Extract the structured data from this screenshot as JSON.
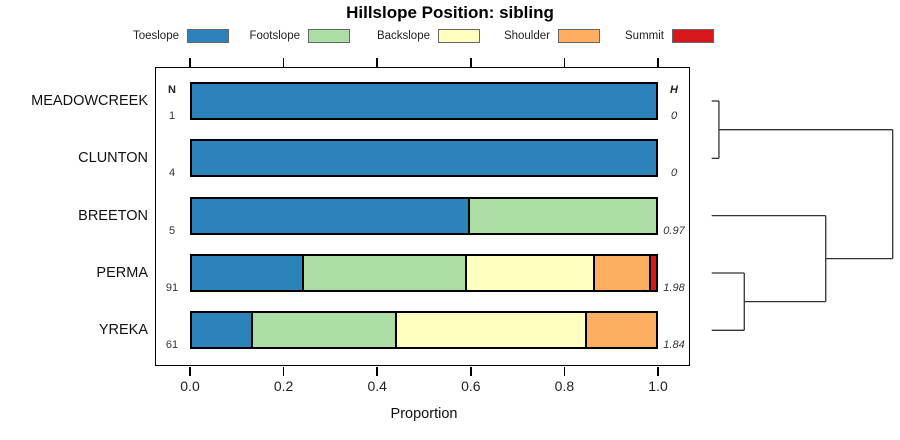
{
  "title": "Hillslope Position: sibling",
  "xlabel": "Proportion",
  "column_headers": {
    "n": "N",
    "h": "H"
  },
  "x_ticks": [
    "0.0",
    "0.2",
    "0.4",
    "0.6",
    "0.8",
    "1.0"
  ],
  "legend": [
    {
      "label": "Toeslope",
      "color": "#2B83BA"
    },
    {
      "label": "Footslope",
      "color": "#ABDDA4"
    },
    {
      "label": "Backslope",
      "color": "#FFFFBF"
    },
    {
      "label": "Shoulder",
      "color": "#FDAE61"
    },
    {
      "label": "Summit",
      "color": "#D7191C"
    }
  ],
  "chart_data": {
    "type": "bar",
    "orientation": "horizontal",
    "stacked": true,
    "title": "Hillslope Position: sibling",
    "xlabel": "Proportion",
    "xlim": [
      0,
      1
    ],
    "grid": false,
    "legend_position": "top",
    "categories": [
      "Toeslope",
      "Footslope",
      "Backslope",
      "Shoulder",
      "Summit"
    ],
    "series": [
      {
        "name": "MEADOWCREEK",
        "n": "1",
        "h": "0",
        "values": [
          1.0,
          0,
          0,
          0,
          0
        ]
      },
      {
        "name": "CLUNTON",
        "n": "4",
        "h": "0",
        "values": [
          1.0,
          0,
          0,
          0,
          0
        ]
      },
      {
        "name": "BREETON",
        "n": "5",
        "h": "0.97",
        "values": [
          0.6,
          0.4,
          0,
          0,
          0
        ]
      },
      {
        "name": "PERMA",
        "n": "91",
        "h": "1.98",
        "values": [
          0.242,
          0.352,
          0.275,
          0.121,
          0.011
        ]
      },
      {
        "name": "YREKA",
        "n": "61",
        "h": "1.84",
        "values": [
          0.131,
          0.311,
          0.41,
          0.148,
          0
        ]
      }
    ],
    "dendrogram": {
      "note": "relative merge heights, leaf=0 root=1",
      "tree": {
        "h": 1.0,
        "children": [
          {
            "h": 0.04,
            "children": [
              {
                "leaf": "MEADOWCREEK"
              },
              {
                "leaf": "CLUNTON"
              }
            ]
          },
          {
            "h": 0.63,
            "children": [
              {
                "leaf": "BREETON"
              },
              {
                "h": 0.18,
                "children": [
                  {
                    "leaf": "PERMA"
                  },
                  {
                    "leaf": "YREKA"
                  }
                ]
              }
            ]
          }
        ]
      }
    }
  }
}
